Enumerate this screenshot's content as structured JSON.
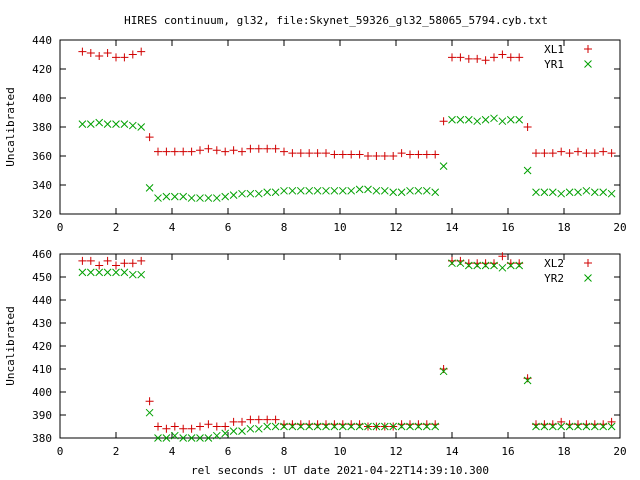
{
  "title": "HIRES continuum, gl32, file:Skynet_59326_gl32_58065_5794.cyb.txt",
  "xlabel": "rel seconds : UT date 2021-04-22T14:39:10.300",
  "colors": {
    "series1": "#d00000",
    "series2": "#00a000"
  },
  "chart_data": [
    {
      "type": "scatter",
      "ylabel": "Uncalibrated",
      "xlim": [
        0,
        20
      ],
      "ylim": [
        320,
        440
      ],
      "xticks": [
        0,
        2,
        4,
        6,
        8,
        10,
        12,
        14,
        16,
        18,
        20
      ],
      "yticks": [
        320,
        340,
        360,
        380,
        400,
        420,
        440
      ],
      "legend": "top-right",
      "series": [
        {
          "name": "XL1",
          "marker": "plus",
          "x": [
            0.8,
            1.1,
            1.4,
            1.7,
            2.0,
            2.3,
            2.6,
            2.9,
            3.2,
            3.5,
            3.8,
            4.1,
            4.4,
            4.7,
            5.0,
            5.3,
            5.6,
            5.9,
            6.2,
            6.5,
            6.8,
            7.1,
            7.4,
            7.7,
            8.0,
            8.3,
            8.6,
            8.9,
            9.2,
            9.5,
            9.8,
            10.1,
            10.4,
            10.7,
            11.0,
            11.3,
            11.6,
            11.9,
            12.2,
            12.5,
            12.8,
            13.1,
            13.4,
            13.7,
            14.0,
            14.3,
            14.6,
            14.9,
            15.2,
            15.5,
            15.8,
            16.1,
            16.4,
            16.7,
            17.0,
            17.3,
            17.6,
            17.9,
            18.2,
            18.5,
            18.8,
            19.1,
            19.4,
            19.7
          ],
          "y": [
            432,
            431,
            429,
            431,
            428,
            428,
            430,
            432,
            373,
            363,
            363,
            363,
            363,
            363,
            364,
            365,
            364,
            363,
            364,
            363,
            365,
            365,
            365,
            365,
            363,
            362,
            362,
            362,
            362,
            362,
            361,
            361,
            361,
            361,
            360,
            360,
            360,
            360,
            362,
            361,
            361,
            361,
            361,
            384,
            428,
            428,
            427,
            427,
            426,
            428,
            430,
            428,
            428,
            380,
            362,
            362,
            362,
            363,
            362,
            363,
            362,
            362,
            363,
            362
          ]
        },
        {
          "name": "YR1",
          "marker": "x",
          "x": [
            0.8,
            1.1,
            1.4,
            1.7,
            2.0,
            2.3,
            2.6,
            2.9,
            3.2,
            3.5,
            3.8,
            4.1,
            4.4,
            4.7,
            5.0,
            5.3,
            5.6,
            5.9,
            6.2,
            6.5,
            6.8,
            7.1,
            7.4,
            7.7,
            8.0,
            8.3,
            8.6,
            8.9,
            9.2,
            9.5,
            9.8,
            10.1,
            10.4,
            10.7,
            11.0,
            11.3,
            11.6,
            11.9,
            12.2,
            12.5,
            12.8,
            13.1,
            13.4,
            13.7,
            14.0,
            14.3,
            14.6,
            14.9,
            15.2,
            15.5,
            15.8,
            16.1,
            16.4,
            16.7,
            17.0,
            17.3,
            17.6,
            17.9,
            18.2,
            18.5,
            18.8,
            19.1,
            19.4,
            19.7
          ],
          "y": [
            382,
            382,
            383,
            382,
            382,
            382,
            381,
            380,
            338,
            331,
            332,
            332,
            332,
            331,
            331,
            331,
            331,
            332,
            333,
            334,
            334,
            334,
            335,
            335,
            336,
            336,
            336,
            336,
            336,
            336,
            336,
            336,
            336,
            337,
            337,
            336,
            336,
            335,
            335,
            336,
            336,
            336,
            335,
            353,
            385,
            385,
            385,
            384,
            385,
            386,
            384,
            385,
            385,
            350,
            335,
            335,
            335,
            334,
            335,
            335,
            336,
            335,
            335,
            334
          ]
        }
      ]
    },
    {
      "type": "scatter",
      "ylabel": "Uncalibrated",
      "xlim": [
        0,
        20
      ],
      "ylim": [
        380,
        460
      ],
      "xticks": [
        0,
        2,
        4,
        6,
        8,
        10,
        12,
        14,
        16,
        18,
        20
      ],
      "yticks": [
        380,
        390,
        400,
        410,
        420,
        430,
        440,
        450,
        460
      ],
      "legend": "top-right",
      "series": [
        {
          "name": "XL2",
          "marker": "plus",
          "x": [
            0.8,
            1.1,
            1.4,
            1.7,
            2.0,
            2.3,
            2.6,
            2.9,
            3.2,
            3.5,
            3.8,
            4.1,
            4.4,
            4.7,
            5.0,
            5.3,
            5.6,
            5.9,
            6.2,
            6.5,
            6.8,
            7.1,
            7.4,
            7.7,
            8.0,
            8.3,
            8.6,
            8.9,
            9.2,
            9.5,
            9.8,
            10.1,
            10.4,
            10.7,
            11.0,
            11.3,
            11.6,
            11.9,
            12.2,
            12.5,
            12.8,
            13.1,
            13.4,
            13.7,
            14.0,
            14.3,
            14.6,
            14.9,
            15.2,
            15.5,
            15.8,
            16.1,
            16.4,
            16.7,
            17.0,
            17.3,
            17.6,
            17.9,
            18.2,
            18.5,
            18.8,
            19.1,
            19.4,
            19.7
          ],
          "y": [
            457,
            457,
            455,
            457,
            455,
            456,
            456,
            457,
            396,
            385,
            384,
            385,
            384,
            384,
            385,
            386,
            385,
            385,
            387,
            387,
            388,
            388,
            388,
            388,
            386,
            386,
            386,
            386,
            386,
            386,
            386,
            386,
            386,
            386,
            385,
            385,
            385,
            385,
            386,
            386,
            386,
            386,
            386,
            410,
            457,
            457,
            456,
            456,
            456,
            456,
            459,
            456,
            456,
            406,
            386,
            386,
            386,
            387,
            386,
            386,
            386,
            386,
            386,
            387
          ]
        },
        {
          "name": "YR2",
          "marker": "x",
          "x": [
            0.8,
            1.1,
            1.4,
            1.7,
            2.0,
            2.3,
            2.6,
            2.9,
            3.2,
            3.5,
            3.8,
            4.1,
            4.4,
            4.7,
            5.0,
            5.3,
            5.6,
            5.9,
            6.2,
            6.5,
            6.8,
            7.1,
            7.4,
            7.7,
            8.0,
            8.3,
            8.6,
            8.9,
            9.2,
            9.5,
            9.8,
            10.1,
            10.4,
            10.7,
            11.0,
            11.3,
            11.6,
            11.9,
            12.2,
            12.5,
            12.8,
            13.1,
            13.4,
            13.7,
            14.0,
            14.3,
            14.6,
            14.9,
            15.2,
            15.5,
            15.8,
            16.1,
            16.4,
            16.7,
            17.0,
            17.3,
            17.6,
            17.9,
            18.2,
            18.5,
            18.8,
            19.1,
            19.4,
            19.7
          ],
          "y": [
            452,
            452,
            452,
            452,
            452,
            452,
            451,
            451,
            391,
            380,
            380,
            381,
            380,
            380,
            380,
            380,
            381,
            382,
            383,
            383,
            384,
            384,
            385,
            385,
            385,
            385,
            385,
            385,
            385,
            385,
            385,
            385,
            385,
            385,
            385,
            385,
            385,
            385,
            385,
            385,
            385,
            385,
            385,
            409,
            456,
            456,
            455,
            455,
            455,
            455,
            454,
            455,
            455,
            405,
            385,
            385,
            385,
            385,
            385,
            385,
            385,
            385,
            385,
            385
          ]
        }
      ]
    }
  ]
}
